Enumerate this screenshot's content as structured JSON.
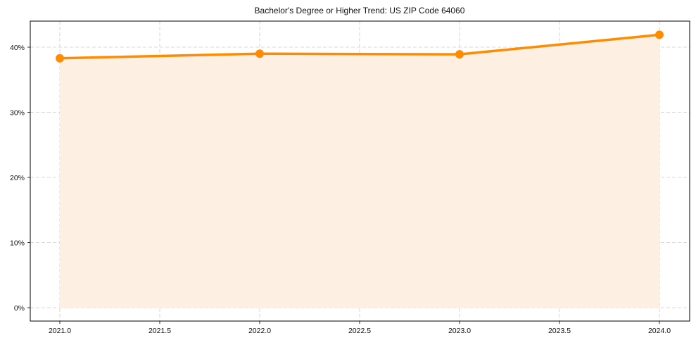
{
  "chart_data": {
    "type": "area",
    "title": "Bachelor's Degree or Higher Trend: US ZIP Code 64060",
    "xlabel": "",
    "ylabel": "",
    "x": [
      2021,
      2022,
      2023,
      2024
    ],
    "series": [
      {
        "name": "Bachelor's Degree or Higher",
        "values": [
          38.3,
          39.0,
          38.9,
          41.9
        ],
        "unit": "%"
      }
    ],
    "xlim": [
      2020.85,
      2024.15
    ],
    "ylim": [
      -2.1,
      44.0
    ],
    "x_ticks": [
      "2021.0",
      "2021.5",
      "2022.0",
      "2022.5",
      "2023.0",
      "2023.5",
      "2024.0"
    ],
    "y_ticks": [
      "0%",
      "10%",
      "20%",
      "30%",
      "40%"
    ],
    "grid": true,
    "legend": null,
    "colors": {
      "line": "#ff8c00",
      "fill": "#fdf0e2",
      "grid": "#cccccc",
      "axis": "#000000"
    }
  }
}
